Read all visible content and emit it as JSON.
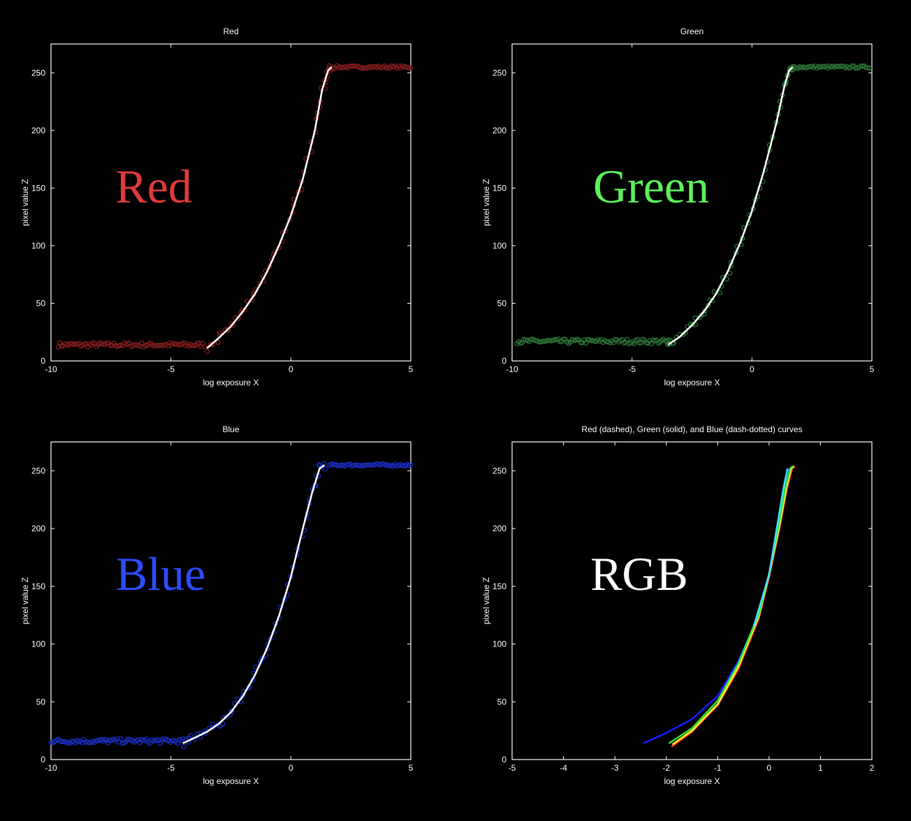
{
  "chart_data": [
    {
      "id": "red",
      "type": "scatter",
      "title": "Red",
      "overlay_label": "Red",
      "overlay_color": "#e03a3a",
      "marker_color": "#8a1e1e",
      "curve_color": "#ffffff",
      "xlabel": "log exposure X",
      "ylabel": "pixel value Z",
      "xlim": [
        -10,
        5
      ],
      "ylim": [
        0,
        275
      ],
      "xticks": [
        "-10",
        "-5",
        "0",
        "5"
      ],
      "yticks": [
        "0",
        "50",
        "100",
        "150",
        "200",
        "250"
      ],
      "series": [
        {
          "kind": "scatter",
          "x_from": -9.7,
          "x_to": -3.6,
          "y": 14,
          "jitter": 2
        },
        {
          "kind": "scatter",
          "x_from": 1.7,
          "x_to": 5,
          "y": 255,
          "jitter": 1
        },
        {
          "kind": "curve",
          "points": [
            [
              -3.5,
              11
            ],
            [
              -3.0,
              20
            ],
            [
              -2.5,
              30
            ],
            [
              -2.0,
              43
            ],
            [
              -1.5,
              58
            ],
            [
              -1.0,
              77
            ],
            [
              -0.5,
              100
            ],
            [
              0,
              126
            ],
            [
              0.5,
              158
            ],
            [
              1.0,
              200
            ],
            [
              1.3,
              235
            ],
            [
              1.55,
              252
            ],
            [
              1.7,
              255
            ]
          ]
        }
      ]
    },
    {
      "id": "green",
      "type": "scatter",
      "title": "Green",
      "overlay_label": "Green",
      "overlay_color": "#5cf05c",
      "marker_color": "#2f7a3a",
      "curve_color": "#ffffff",
      "xlabel": "log exposure X",
      "ylabel": "pixel value Z",
      "xlim": [
        -10,
        5
      ],
      "ylim": [
        0,
        275
      ],
      "xticks": [
        "-10",
        "-5",
        "0",
        "5"
      ],
      "yticks": [
        "0",
        "50",
        "100",
        "150",
        "200",
        "250"
      ],
      "series": [
        {
          "kind": "scatter",
          "x_from": -9.8,
          "x_to": -3.4,
          "y": 17,
          "jitter": 2
        },
        {
          "kind": "scatter",
          "x_from": 1.7,
          "x_to": 4.9,
          "y": 255,
          "jitter": 1
        },
        {
          "kind": "curve",
          "points": [
            [
              -3.5,
              14
            ],
            [
              -3.0,
              21
            ],
            [
              -2.5,
              31
            ],
            [
              -2.0,
              43
            ],
            [
              -1.5,
              58
            ],
            [
              -1.0,
              78
            ],
            [
              -0.5,
              102
            ],
            [
              0,
              130
            ],
            [
              0.5,
              165
            ],
            [
              1.0,
              205
            ],
            [
              1.35,
              238
            ],
            [
              1.55,
              252
            ],
            [
              1.7,
              255
            ]
          ]
        }
      ]
    },
    {
      "id": "blue",
      "type": "scatter",
      "title": "Blue",
      "overlay_label": "Blue",
      "overlay_color": "#2b4cff",
      "marker_color": "#1a2fc8",
      "curve_color": "#ffffff",
      "xlabel": "log exposure X",
      "ylabel": "pixel value Z",
      "xlim": [
        -10,
        5
      ],
      "ylim": [
        0,
        275
      ],
      "xticks": [
        "-10",
        "-5",
        "0",
        "5"
      ],
      "yticks": [
        "0",
        "50",
        "100",
        "150",
        "200",
        "250"
      ],
      "series": [
        {
          "kind": "scatter",
          "x_from": -10,
          "x_to": -4.5,
          "y": 16,
          "jitter": 2
        },
        {
          "kind": "scatter",
          "x_from": 1.6,
          "x_to": 5,
          "y": 255,
          "jitter": 1
        },
        {
          "kind": "curve",
          "points": [
            [
              -4.5,
              14
            ],
            [
              -4.0,
              19
            ],
            [
              -3.5,
              24
            ],
            [
              -3.0,
              31
            ],
            [
              -2.5,
              41
            ],
            [
              -2.0,
              55
            ],
            [
              -1.5,
              73
            ],
            [
              -1.0,
              96
            ],
            [
              -0.5,
              124
            ],
            [
              0,
              158
            ],
            [
              0.5,
              200
            ],
            [
              0.9,
              232
            ],
            [
              1.2,
              252
            ],
            [
              1.4,
              255
            ]
          ]
        }
      ]
    },
    {
      "id": "rgb",
      "type": "line",
      "title": "Red (dashed), Green (solid), and Blue (dash-dotted) curves",
      "overlay_label": "RGB",
      "overlay_color": "#ffffff",
      "xlabel": "log exposure X",
      "ylabel": "pixel value Z",
      "xlim": [
        -5,
        2
      ],
      "ylim": [
        0,
        275
      ],
      "xticks": [
        "-5",
        "-4",
        "-3",
        "-2",
        "-1",
        "0",
        "1",
        "2"
      ],
      "yticks": [
        "0",
        "50",
        "100",
        "150",
        "200",
        "250"
      ],
      "series": [
        {
          "kind": "curve",
          "color": "#1a1aff",
          "points": [
            [
              -2.45,
              14
            ],
            [
              -2.0,
              23
            ],
            [
              -1.5,
              35
            ],
            [
              -1.0,
              55
            ],
            [
              -0.6,
              85
            ],
            [
              -0.2,
              125
            ],
            [
              0.0,
              160
            ],
            [
              0.15,
              200
            ],
            [
              0.3,
              235
            ],
            [
              0.38,
              252
            ]
          ]
        },
        {
          "kind": "curve",
          "color": "#ff2020",
          "points": [
            [
              -1.9,
              11
            ],
            [
              -1.5,
              24
            ],
            [
              -1.0,
              47
            ],
            [
              -0.6,
              78
            ],
            [
              -0.2,
              122
            ],
            [
              0.0,
              158
            ],
            [
              0.2,
              200
            ],
            [
              0.35,
              235
            ],
            [
              0.45,
              252
            ],
            [
              0.5,
              254
            ]
          ]
        },
        {
          "kind": "curve",
          "color": "#ffff20",
          "points": [
            [
              -1.88,
              13
            ],
            [
              -1.5,
              25
            ],
            [
              -1.0,
              48
            ],
            [
              -0.6,
              80
            ],
            [
              -0.2,
              124
            ],
            [
              0.0,
              160
            ],
            [
              0.2,
              202
            ],
            [
              0.34,
              236
            ],
            [
              0.43,
              252
            ],
            [
              0.48,
              254
            ]
          ]
        },
        {
          "kind": "curve",
          "color": "#30e040",
          "points": [
            [
              -1.95,
              14
            ],
            [
              -1.5,
              27
            ],
            [
              -1.0,
              51
            ],
            [
              -0.6,
              83
            ],
            [
              -0.2,
              126
            ],
            [
              0.0,
              161
            ],
            [
              0.18,
              202
            ],
            [
              0.32,
              236
            ],
            [
              0.41,
              252
            ],
            [
              0.46,
              254
            ]
          ]
        },
        {
          "kind": "curve",
          "color": "#40e0ff",
          "points": [
            [
              -0.3,
              115
            ],
            [
              0.0,
              160
            ],
            [
              0.15,
              200
            ],
            [
              0.28,
              235
            ],
            [
              0.36,
              252
            ]
          ]
        }
      ]
    }
  ]
}
